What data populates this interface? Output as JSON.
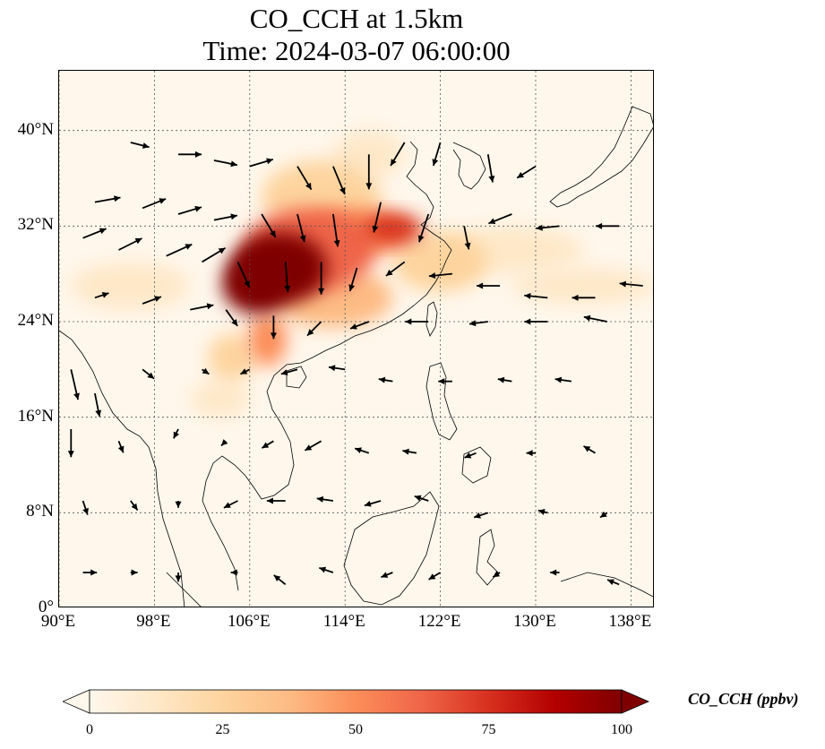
{
  "title": {
    "line1": "CO_CCH at 1.5km",
    "line2": "Time: 2024-03-07 06:00:00"
  },
  "map": {
    "extent": {
      "lon": [
        90,
        140
      ],
      "lat": [
        0,
        45
      ]
    },
    "lat_ticks": [
      {
        "value": 0,
        "label": "0°"
      },
      {
        "value": 8,
        "label": "8°N"
      },
      {
        "value": 16,
        "label": "16°N"
      },
      {
        "value": 24,
        "label": "24°N"
      },
      {
        "value": 32,
        "label": "32°N"
      },
      {
        "value": 40,
        "label": "40°N"
      }
    ],
    "lon_ticks": [
      {
        "value": 90,
        "label": "90°E"
      },
      {
        "value": 98,
        "label": "98°E"
      },
      {
        "value": 106,
        "label": "106°E"
      },
      {
        "value": 114,
        "label": "114°E"
      },
      {
        "value": 122,
        "label": "122°E"
      },
      {
        "value": 130,
        "label": "130°E"
      },
      {
        "value": 138,
        "label": "138°E"
      }
    ],
    "gridlines": true,
    "ocean_color": "#fff7ec",
    "coast_color": "#000000",
    "plumes": [
      {
        "lon": 108.5,
        "lat": 28.5,
        "rx": 4.0,
        "ry": 3.0,
        "value": 100
      },
      {
        "lon": 106.5,
        "lat": 27.2,
        "rx": 2.8,
        "ry": 2.5,
        "value": 95
      },
      {
        "lon": 111,
        "lat": 30,
        "rx": 5.5,
        "ry": 3.5,
        "value": 60
      },
      {
        "lon": 115,
        "lat": 31.5,
        "rx": 4.5,
        "ry": 2.0,
        "value": 55
      },
      {
        "lon": 118,
        "lat": 31.8,
        "rx": 2.5,
        "ry": 1.2,
        "value": 70
      },
      {
        "lon": 112,
        "lat": 34.5,
        "rx": 5,
        "ry": 3,
        "value": 30
      },
      {
        "lon": 113,
        "lat": 26,
        "rx": 5,
        "ry": 2.5,
        "value": 35
      },
      {
        "lon": 107.5,
        "lat": 22.5,
        "rx": 1.6,
        "ry": 2.2,
        "value": 50
      },
      {
        "lon": 104.5,
        "lat": 21,
        "rx": 2,
        "ry": 2,
        "value": 25
      },
      {
        "lon": 122,
        "lat": 29,
        "rx": 4,
        "ry": 2.5,
        "value": 20
      },
      {
        "lon": 128,
        "lat": 30,
        "rx": 6,
        "ry": 2,
        "value": 15
      },
      {
        "lon": 134,
        "lat": 27,
        "rx": 6,
        "ry": 1.5,
        "value": 10
      },
      {
        "lon": 96,
        "lat": 27,
        "rx": 5,
        "ry": 2,
        "value": 8
      },
      {
        "lon": 103.5,
        "lat": 17.5,
        "rx": 2.5,
        "ry": 1.5,
        "value": 12
      },
      {
        "lon": 116,
        "lat": 38,
        "rx": 3,
        "ry": 2,
        "value": 15
      }
    ],
    "wind_vectors": [
      [
        96,
        39,
        0.8,
        -0.2
      ],
      [
        100,
        38,
        1,
        0
      ],
      [
        103,
        37.5,
        1,
        -0.2
      ],
      [
        106,
        37,
        1,
        0.3
      ],
      [
        110,
        37,
        0.6,
        -1
      ],
      [
        113,
        37,
        0.5,
        -1.2
      ],
      [
        116,
        38,
        0,
        -1.5
      ],
      [
        119,
        39,
        -0.6,
        -1
      ],
      [
        122,
        39,
        -0.3,
        -1
      ],
      [
        126,
        38,
        0.2,
        -1.2
      ],
      [
        130,
        37,
        -0.8,
        -0.5
      ],
      [
        93,
        34,
        1.1,
        0.2
      ],
      [
        97,
        33.5,
        1,
        0.4
      ],
      [
        100,
        33,
        1,
        0.3
      ],
      [
        103,
        32.5,
        1,
        0.2
      ],
      [
        107,
        33,
        0.6,
        -1
      ],
      [
        110,
        33,
        0.3,
        -1.2
      ],
      [
        113,
        33,
        0.2,
        -1.4
      ],
      [
        117,
        34,
        -0.3,
        -1.3
      ],
      [
        121,
        33,
        -0.4,
        -1.2
      ],
      [
        124,
        32,
        0.2,
        -1
      ],
      [
        128,
        33,
        -1,
        -0.4
      ],
      [
        132,
        32,
        -1,
        -0.1
      ],
      [
        137,
        32,
        -1,
        0
      ],
      [
        92,
        31,
        1,
        0.4
      ],
      [
        95,
        30,
        1,
        0.5
      ],
      [
        99,
        29.5,
        1.1,
        0.5
      ],
      [
        102,
        29,
        1,
        0.6
      ],
      [
        105,
        29,
        0.5,
        -1.1
      ],
      [
        109,
        29,
        0.1,
        -1.3
      ],
      [
        112,
        29,
        0,
        -1.4
      ],
      [
        115,
        28.5,
        -0.3,
        -1
      ],
      [
        119,
        29,
        -0.8,
        -0.6
      ],
      [
        123,
        28,
        -1,
        -0.1
      ],
      [
        127,
        27,
        -1,
        0
      ],
      [
        131,
        26,
        -1,
        0.1
      ],
      [
        135,
        26,
        -1,
        0
      ],
      [
        139,
        27,
        -1,
        0.1
      ],
      [
        93,
        26,
        0.6,
        0.2
      ],
      [
        97,
        25.5,
        0.8,
        0.3
      ],
      [
        101,
        25,
        1,
        0.2
      ],
      [
        104,
        25,
        0.5,
        -0.7
      ],
      [
        108,
        24.5,
        0,
        -1
      ],
      [
        112,
        24,
        -0.6,
        -0.6
      ],
      [
        116,
        24,
        -0.8,
        -0.3
      ],
      [
        121,
        24,
        -1,
        0
      ],
      [
        126,
        24,
        -0.8,
        -0.1
      ],
      [
        131,
        24,
        -1,
        0
      ],
      [
        136,
        24,
        -1,
        0.2
      ],
      [
        91,
        20,
        0.3,
        -1.3
      ],
      [
        93,
        18,
        0.2,
        -1
      ],
      [
        97,
        20,
        0.5,
        -0.4
      ],
      [
        102,
        20,
        0.3,
        -0.2
      ],
      [
        106,
        20,
        -0.4,
        -0.2
      ],
      [
        110,
        20,
        -0.7,
        -0.2
      ],
      [
        114,
        20,
        -0.7,
        0.1
      ],
      [
        118,
        19,
        -0.6,
        0.1
      ],
      [
        123,
        19,
        -0.6,
        0
      ],
      [
        128,
        19,
        -0.6,
        0.1
      ],
      [
        133,
        19,
        -0.7,
        0.1
      ],
      [
        91,
        15,
        0,
        -1.2
      ],
      [
        95,
        14,
        0.2,
        -0.5
      ],
      [
        100,
        15,
        -0.2,
        -0.4
      ],
      [
        104,
        14,
        -0.2,
        -0.2
      ],
      [
        108,
        14,
        -0.5,
        -0.3
      ],
      [
        112,
        14,
        -0.7,
        -0.4
      ],
      [
        116,
        13,
        -0.6,
        0.2
      ],
      [
        120,
        13,
        -0.6,
        0.1
      ],
      [
        125,
        13,
        -0.5,
        -0.2
      ],
      [
        130,
        13,
        -0.4,
        0
      ],
      [
        135,
        13,
        -0.5,
        0.3
      ],
      [
        92,
        9,
        0.2,
        -0.6
      ],
      [
        96,
        9,
        0.3,
        -0.4
      ],
      [
        100,
        9,
        0,
        -0.3
      ],
      [
        105,
        9,
        -0.6,
        -0.3
      ],
      [
        109,
        9,
        -0.8,
        0
      ],
      [
        113,
        9,
        -0.7,
        0.1
      ],
      [
        117,
        9,
        -0.7,
        -0.2
      ],
      [
        121,
        9,
        -0.6,
        0.2
      ],
      [
        126,
        8,
        -0.6,
        -0.2
      ],
      [
        131,
        8,
        -0.4,
        0.1
      ],
      [
        136,
        8,
        -0.3,
        -0.2
      ],
      [
        92,
        3,
        0.6,
        0
      ],
      [
        96,
        3,
        0.3,
        0
      ],
      [
        100,
        3,
        0,
        -0.4
      ],
      [
        105,
        3,
        -0.3,
        0
      ],
      [
        109,
        2,
        -0.5,
        0.4
      ],
      [
        113,
        3,
        -0.6,
        0.2
      ],
      [
        118,
        3,
        -0.5,
        -0.2
      ],
      [
        122,
        3,
        -0.5,
        -0.3
      ],
      [
        127,
        3,
        -0.3,
        -0.2
      ],
      [
        132,
        3,
        -0.4,
        0
      ],
      [
        137,
        2,
        -0.5,
        0.2
      ]
    ]
  },
  "colorbar": {
    "label": "CO_CCH (ppbv)",
    "min": 0,
    "max": 100,
    "ticks": [
      {
        "value": 0,
        "label": "0"
      },
      {
        "value": 25,
        "label": "25"
      },
      {
        "value": 50,
        "label": "50"
      },
      {
        "value": 75,
        "label": "75"
      },
      {
        "value": 100,
        "label": "100"
      }
    ],
    "extend": "both",
    "colors": [
      "#fff7ec",
      "#fee8c8",
      "#fdd49e",
      "#fdbb84",
      "#fc8d59",
      "#ef6548",
      "#d7301f",
      "#b30000",
      "#7f0000"
    ]
  }
}
